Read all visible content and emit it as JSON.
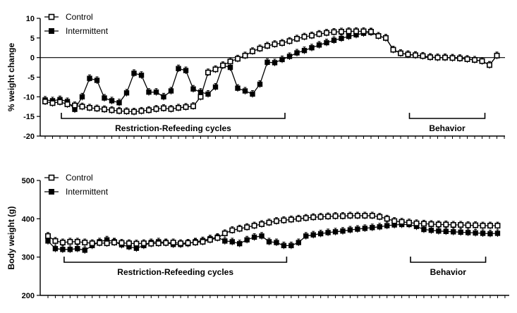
{
  "chart_data": [
    {
      "type": "line",
      "panel": "top",
      "ylabel": "% weight change",
      "ylim": [
        -20,
        10
      ],
      "yticks": [
        10,
        5,
        0,
        -5,
        -10,
        -15,
        -20
      ],
      "zero_line": true,
      "legend": {
        "placement": "top-left"
      },
      "x": [
        1,
        2,
        3,
        4,
        5,
        6,
        7,
        8,
        9,
        10,
        11,
        12,
        13,
        14,
        15,
        16,
        17,
        18,
        19,
        20,
        21,
        22,
        23,
        24,
        25,
        26,
        27,
        28,
        29,
        30,
        31,
        32,
        33,
        34,
        35,
        36,
        37,
        38,
        39,
        40,
        41,
        42,
        43,
        44,
        45,
        46,
        47,
        48,
        49,
        50,
        51,
        52,
        53,
        54,
        55,
        56,
        57,
        58,
        59,
        60,
        61,
        62
      ],
      "series": [
        {
          "name": "Control",
          "marker": "open-square",
          "values": [
            -11.2,
            -11.6,
            -11.3,
            -11.9,
            -12.2,
            -12.5,
            -12.8,
            -13.0,
            -13.2,
            -13.4,
            -13.6,
            -13.7,
            -13.8,
            -13.6,
            -13.4,
            -13.1,
            -12.9,
            -13.1,
            -12.8,
            -12.6,
            -12.4,
            -10.0,
            -3.8,
            -3.0,
            -2.0,
            -1.0,
            -0.3,
            0.5,
            1.6,
            2.3,
            3.0,
            3.4,
            3.7,
            4.2,
            4.8,
            5.3,
            5.6,
            6.0,
            6.3,
            6.5,
            6.6,
            6.7,
            6.7,
            6.7,
            6.6,
            5.5,
            5.0,
            2.0,
            1.1,
            0.8,
            0.6,
            0.4,
            0.1,
            0.0,
            0.0,
            -0.1,
            -0.2,
            -0.4,
            -0.6,
            -0.9,
            -1.9,
            0.5
          ]
        },
        {
          "name": "Intermittent",
          "marker": "filled-square",
          "values": [
            -10.8,
            -11.0,
            -10.7,
            -11.2,
            -13.2,
            -10.0,
            -5.3,
            -5.8,
            -10.3,
            -11.0,
            -11.5,
            -9.0,
            -4.0,
            -4.5,
            -8.8,
            -8.8,
            -10.0,
            -8.5,
            -2.8,
            -3.3,
            -8.0,
            -8.8,
            -9.3,
            -7.5,
            -2.0,
            -2.5,
            -7.8,
            -8.5,
            -9.3,
            -6.8,
            -1.2,
            -1.3,
            -0.5,
            0.3,
            1.2,
            1.8,
            2.5,
            3.2,
            3.8,
            4.4,
            4.9,
            5.4,
            5.8,
            6.2,
            6.4,
            5.5,
            5.0,
            2.0,
            1.1,
            0.8,
            0.6,
            0.4,
            0.1,
            0.0,
            0.0,
            -0.1,
            -0.2,
            -0.4,
            -0.6,
            -0.9,
            -1.9,
            0.5
          ]
        }
      ],
      "brackets": [
        {
          "label": "Restriction-Refeeding cycles",
          "from": 3,
          "to": 33
        },
        {
          "label": "Behavior",
          "from": 50,
          "to": 60
        }
      ]
    },
    {
      "type": "line",
      "panel": "bottom",
      "ylabel": "Body weight (g)",
      "ylim": [
        200,
        500
      ],
      "yticks": [
        500,
        400,
        300,
        200
      ],
      "legend": {
        "placement": "top-left"
      },
      "x": [
        1,
        2,
        3,
        4,
        5,
        6,
        7,
        8,
        9,
        10,
        11,
        12,
        13,
        14,
        15,
        16,
        17,
        18,
        19,
        20,
        21,
        22,
        23,
        24,
        25,
        26,
        27,
        28,
        29,
        30,
        31,
        32,
        33,
        34,
        35,
        36,
        37,
        38,
        39,
        40,
        41,
        42,
        43,
        44,
        45,
        46,
        47,
        48,
        49,
        50,
        51,
        52,
        53,
        54,
        55,
        56,
        57,
        58,
        59,
        60,
        61,
        62
      ],
      "series": [
        {
          "name": "Control",
          "marker": "open-square",
          "values": [
            355,
            342,
            338,
            340,
            340,
            338,
            336,
            337,
            336,
            338,
            337,
            336,
            335,
            336,
            335,
            336,
            337,
            338,
            336,
            337,
            338,
            340,
            345,
            350,
            362,
            370,
            374,
            378,
            382,
            386,
            390,
            394,
            396,
            398,
            400,
            402,
            404,
            405,
            406,
            407,
            407,
            408,
            408,
            408,
            408,
            405,
            400,
            394,
            392,
            390,
            388,
            387,
            386,
            385,
            385,
            384,
            384,
            383,
            383,
            382,
            382,
            382
          ]
        },
        {
          "name": "Intermittent",
          "marker": "filled-square",
          "values": [
            342,
            322,
            320,
            320,
            322,
            318,
            330,
            340,
            345,
            340,
            332,
            327,
            323,
            330,
            338,
            340,
            338,
            333,
            333,
            335,
            340,
            343,
            348,
            352,
            342,
            340,
            335,
            345,
            352,
            355,
            340,
            338,
            330,
            330,
            338,
            355,
            358,
            361,
            364,
            366,
            368,
            371,
            373,
            375,
            377,
            379,
            382,
            384,
            385,
            385,
            380,
            372,
            370,
            368,
            367,
            366,
            365,
            364,
            363,
            362,
            361,
            362
          ]
        }
      ],
      "brackets": [
        {
          "label": "Restriction-Refeeding cycles",
          "from": 3,
          "to": 33
        },
        {
          "label": "Behavior",
          "from": 50,
          "to": 60
        }
      ]
    }
  ]
}
